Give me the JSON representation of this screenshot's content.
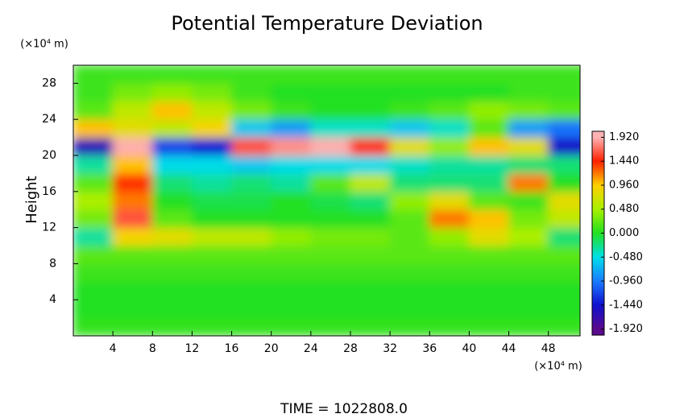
{
  "chart_data": {
    "type": "heatmap",
    "title": "Potential Temperature Deviation",
    "ylabel": "Height",
    "yunits": "(×10⁴ m)",
    "xunits": "(×10⁴ m)",
    "footer": "TIME = 1022808.0",
    "xlim": [
      0,
      51.2
    ],
    "ylim": [
      0,
      30
    ],
    "xticks": [
      4,
      8,
      12,
      16,
      20,
      24,
      28,
      32,
      36,
      40,
      44,
      48
    ],
    "yticks": [
      4,
      8,
      12,
      16,
      20,
      24,
      28
    ],
    "x_edges": [
      0,
      4,
      8,
      12,
      16,
      20,
      24,
      28,
      32,
      36,
      40,
      44,
      48,
      52
    ],
    "y_edges": [
      0,
      2,
      4,
      6,
      8,
      10,
      12,
      14,
      16,
      18,
      20,
      22,
      24,
      26,
      28,
      30
    ],
    "z": [
      [
        0.05,
        0.05,
        0.05,
        0.05,
        0.05,
        0.05,
        0.05,
        0.05,
        0.05,
        0.05,
        0.05,
        0.05,
        0.05
      ],
      [
        0,
        0,
        0,
        0,
        0,
        0,
        0,
        0,
        0,
        0,
        0,
        0,
        0
      ],
      [
        0,
        0,
        0,
        0,
        0,
        0,
        0,
        0,
        0,
        0,
        0,
        0,
        0
      ],
      [
        0.1,
        0.1,
        0.1,
        0.1,
        0.1,
        0.1,
        0.1,
        0.1,
        0.1,
        0.1,
        0.1,
        0.1,
        0.1
      ],
      [
        0.2,
        0.2,
        0.2,
        0.2,
        0.2,
        0.2,
        0.2,
        0.2,
        0.2,
        0.2,
        0.2,
        0.2,
        0.2
      ],
      [
        -0.3,
        0.9,
        0.8,
        0.6,
        0.6,
        0.4,
        0.3,
        0.3,
        0.2,
        0.4,
        0.8,
        0.5,
        -0.2
      ],
      [
        0.3,
        1.6,
        0.2,
        0,
        0,
        0,
        0,
        0,
        0.2,
        1.2,
        1.0,
        0.3,
        0.6
      ],
      [
        0.5,
        1.2,
        0,
        -0.1,
        -0.1,
        0,
        -0.1,
        -0.2,
        0.4,
        0.8,
        0.2,
        0.1,
        0.8
      ],
      [
        0.2,
        1.4,
        -0.2,
        -0.3,
        -0.2,
        -0.3,
        0.2,
        0.6,
        -0.2,
        -0.2,
        -0.2,
        1.2,
        0
      ],
      [
        -0.3,
        1.0,
        -0.5,
        -0.5,
        -0.6,
        -0.5,
        -0.5,
        -0.5,
        -0.4,
        -0.3,
        -0.3,
        -0.2,
        -0.2
      ],
      [
        -1.6,
        1.9,
        -1.2,
        -1.4,
        1.6,
        1.8,
        1.9,
        1.5,
        0.8,
        0.4,
        1.0,
        0.8,
        -1.5
      ],
      [
        1.0,
        0.8,
        0.6,
        0.9,
        -0.6,
        -0.8,
        -0.4,
        -0.4,
        -0.6,
        -0.4,
        0.2,
        -0.8,
        -1.0
      ],
      [
        0.2,
        0.6,
        1.0,
        0.6,
        0.3,
        0.1,
        0,
        0,
        0.1,
        0.2,
        0.4,
        0.3,
        0.2
      ],
      [
        0.1,
        0.3,
        0.4,
        0.3,
        0.1,
        0,
        0,
        0,
        0,
        0,
        0,
        0.1,
        0.1
      ],
      [
        0.1,
        0.1,
        0.1,
        0.1,
        0.1,
        0.1,
        0.1,
        0.1,
        0.1,
        0.1,
        0.1,
        0.1,
        0.1
      ]
    ],
    "clim": [
      -2.04,
      2.04
    ],
    "cticks": [
      {
        "value": 1.92,
        "label": "1.920"
      },
      {
        "value": 1.44,
        "label": "1.440"
      },
      {
        "value": 0.96,
        "label": "0.960"
      },
      {
        "value": 0.48,
        "label": "0.480"
      },
      {
        "value": 0,
        "label": "0.000"
      },
      {
        "value": -0.48,
        "label": "-0.480"
      },
      {
        "value": -0.96,
        "label": "-0.960"
      },
      {
        "value": -1.44,
        "label": "-1.440"
      },
      {
        "value": -1.92,
        "label": "-1.920"
      }
    ],
    "colormap": [
      "#ffb4b4",
      "#ff2000",
      "#ffd000",
      "#a8f000",
      "#22e022",
      "#00e0e8",
      "#1a7cff",
      "#1010d0",
      "#5a0a8c"
    ]
  }
}
